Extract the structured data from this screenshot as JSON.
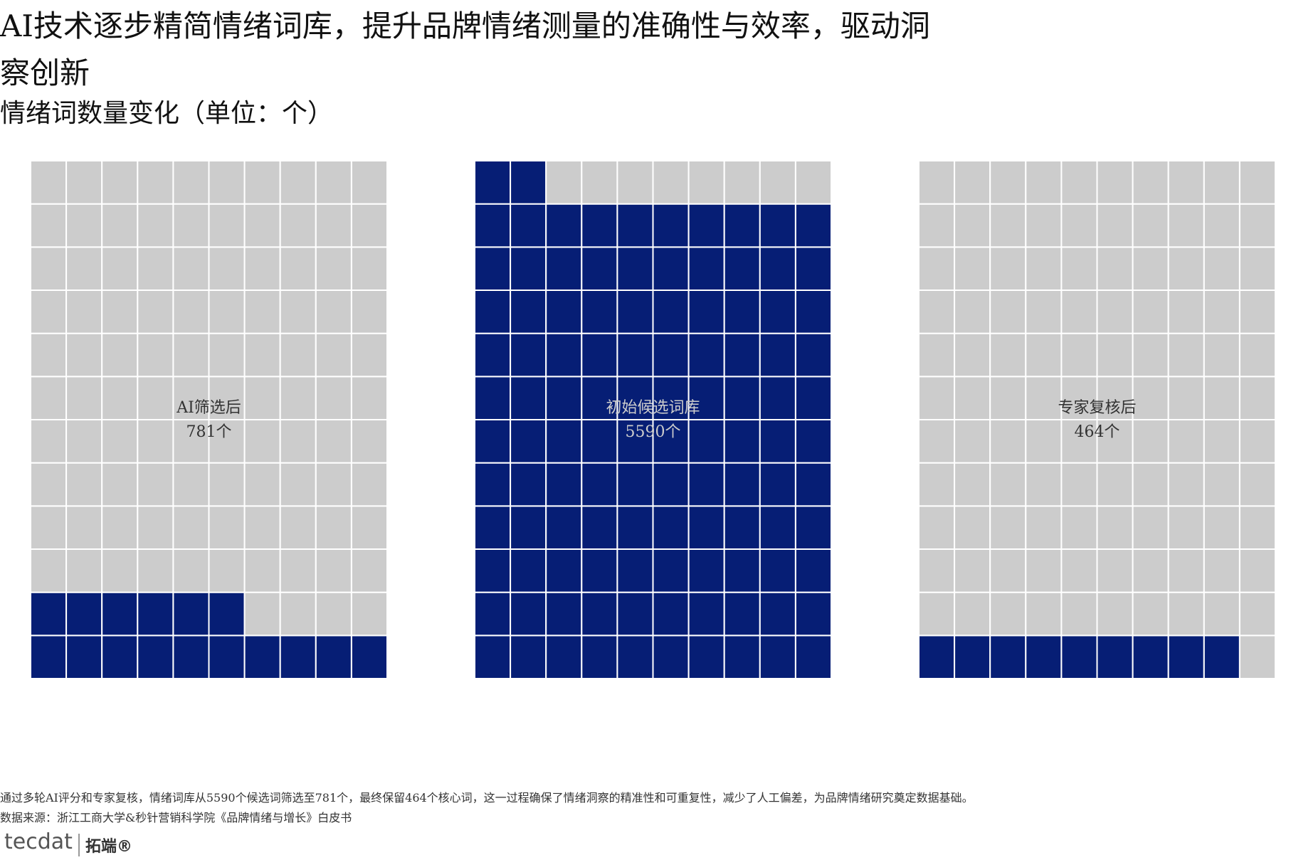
{
  "chart_data": {
    "type": "waffle",
    "title": "AI技术逐步精简情绪词库，提升品牌情绪测量的准确性与效率，驱动洞察创新",
    "subtitle": "情绪词数量变化（单位：个）",
    "categories": [
      "AI筛选后",
      "初始候选词库",
      "专家复核后"
    ],
    "values": [
      781,
      5590,
      464
    ],
    "value_labels": [
      "781个",
      "5590个",
      "464个"
    ],
    "color": "#061e75",
    "empty_color": "#cccccc"
  },
  "footer": {
    "note": "通过多轮AI评分和专家复核，情绪词库从5590个候选词筛选至781个，最终保留464个核心词，这一过程确保了情绪洞察的精准性和可重复性，减少了人工偏差，为品牌情绪研究奠定数据基础。",
    "source": "数据来源：浙江工商大学&秒针营销科学院《品牌情绪与增长》白皮书",
    "logo": "tecdat",
    "brand": "拓端®"
  }
}
